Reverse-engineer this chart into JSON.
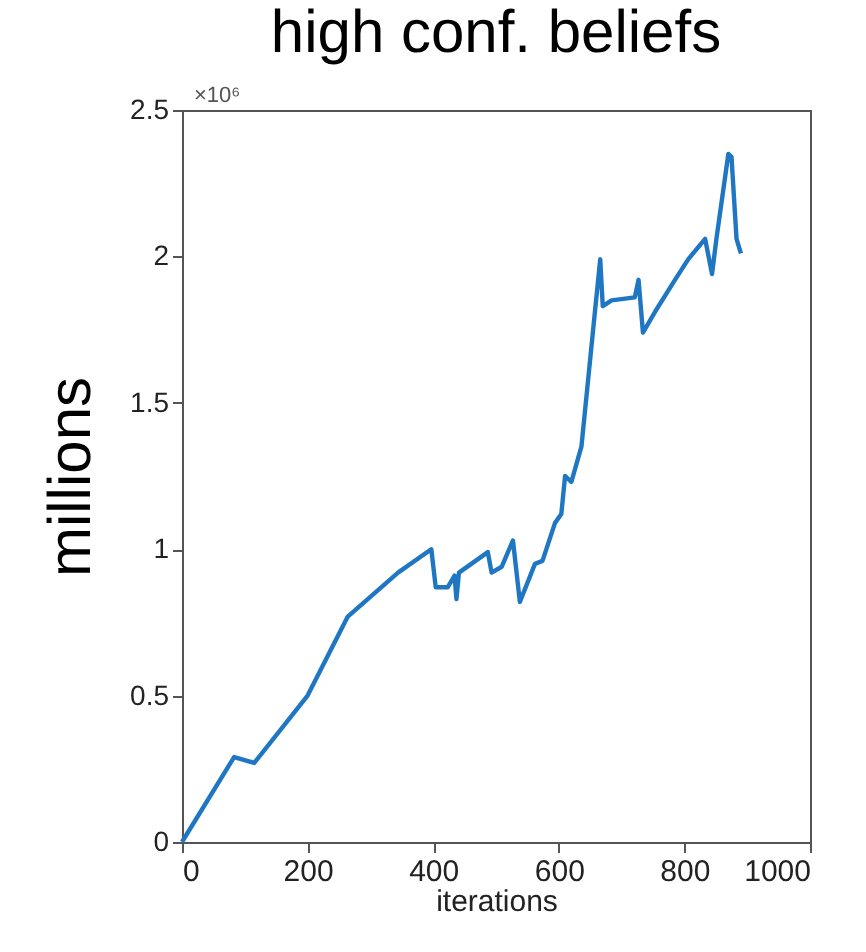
{
  "chart_data": {
    "type": "line",
    "title": "high conf. beliefs",
    "xlabel": "iterations",
    "ylabel": "millions",
    "annotations": [
      "×10⁶"
    ],
    "xlim": [
      0,
      1000
    ],
    "xticks": [
      0,
      200,
      400,
      600,
      800,
      1000
    ],
    "ylim": [
      0,
      2.5
    ],
    "yticks": [
      0,
      0.5,
      1,
      1.5,
      2,
      2.5
    ],
    "grid": false,
    "series": [
      {
        "color": "#1f77c4",
        "x": [
          0,
          83,
          115,
          200,
          264,
          344,
          397,
          404,
          423,
          434,
          437,
          441,
          487,
          493,
          509,
          527,
          538,
          551,
          562,
          574,
          594,
          604,
          610,
          620,
          636,
          657,
          666,
          670,
          684,
          721,
          727,
          734,
          753,
          785,
          806,
          833,
          844,
          851,
          870,
          875,
          883,
          890
        ],
        "values": [
          0,
          0.29,
          0.27,
          0.5,
          0.77,
          0.92,
          1.0,
          0.87,
          0.87,
          0.91,
          0.83,
          0.92,
          0.99,
          0.92,
          0.94,
          1.03,
          0.82,
          0.89,
          0.95,
          0.96,
          1.09,
          1.12,
          1.25,
          1.23,
          1.35,
          1.8,
          1.99,
          1.83,
          1.85,
          1.86,
          1.92,
          1.74,
          1.81,
          1.92,
          1.99,
          2.06,
          1.94,
          2.06,
          2.35,
          2.34,
          2.06,
          2.01
        ]
      }
    ]
  }
}
